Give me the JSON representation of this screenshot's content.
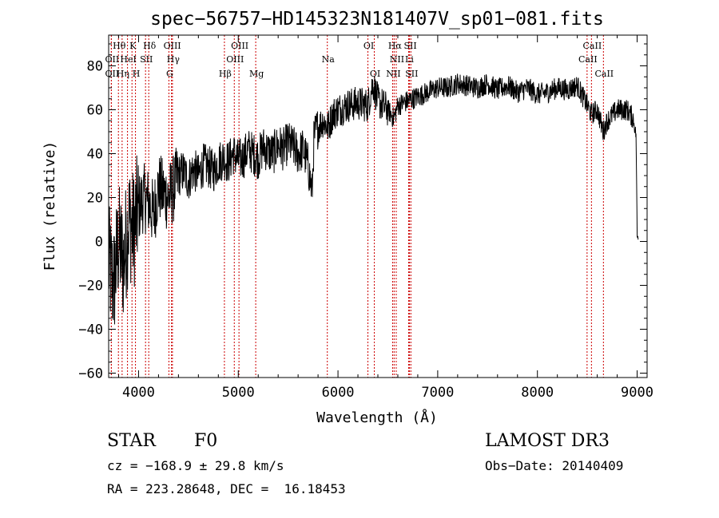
{
  "chart_data": {
    "type": "line",
    "title": "spec−56757−HD145323N181407V_sp01−081.fits",
    "xlabel": "Wavelength (Å)",
    "ylabel": "Flux (relative)",
    "xlim": [
      3700,
      9100
    ],
    "ylim": [
      -62,
      94
    ],
    "xticks": [
      4000,
      5000,
      6000,
      7000,
      8000,
      9000
    ],
    "xtick_labels": [
      "4000",
      "5000",
      "6000",
      "7000",
      "8000",
      "9000"
    ],
    "yticks": [
      -60,
      -40,
      -20,
      0,
      20,
      40,
      60,
      80
    ],
    "ytick_labels": [
      "−60",
      "−40",
      "−20",
      "0",
      "20",
      "40",
      "60",
      "80"
    ],
    "grid": false,
    "series": [
      {
        "name": "flux",
        "x": [
          3700,
          3750,
          3800,
          3850,
          3900,
          3950,
          4000,
          4050,
          4100,
          4150,
          4200,
          4250,
          4300,
          4350,
          4400,
          4450,
          4500,
          4550,
          4600,
          4650,
          4700,
          4750,
          4800,
          4850,
          4900,
          4950,
          5000,
          5050,
          5100,
          5150,
          5200,
          5250,
          5300,
          5350,
          5400,
          5450,
          5500,
          5550,
          5600,
          5650,
          5700,
          5740,
          5760,
          5800,
          5850,
          5900,
          5950,
          6000,
          6100,
          6200,
          6300,
          6350,
          6400,
          6500,
          6560,
          6600,
          6700,
          6800,
          6900,
          7000,
          7100,
          7200,
          7300,
          7400,
          7500,
          7600,
          7700,
          7800,
          7900,
          8000,
          8100,
          8200,
          8300,
          8400,
          8500,
          8540,
          8600,
          8660,
          8700,
          8800,
          8900,
          8960,
          8990,
          9000,
          9010
        ],
        "y": [
          -10,
          -20,
          0,
          -10,
          10,
          5,
          15,
          20,
          18,
          12,
          25,
          22,
          20,
          24,
          30,
          32,
          28,
          33,
          30,
          35,
          34,
          32,
          36,
          38,
          36,
          40,
          37,
          38,
          42,
          40,
          38,
          43,
          41,
          40,
          44,
          42,
          45,
          43,
          40,
          42,
          35,
          22,
          48,
          52,
          55,
          52,
          58,
          60,
          62,
          63,
          62,
          72,
          64,
          60,
          56,
          62,
          64,
          66,
          68,
          70,
          70,
          72,
          71,
          70,
          72,
          69,
          71,
          68,
          70,
          67,
          68,
          70,
          69,
          71,
          62,
          58,
          60,
          50,
          55,
          60,
          60,
          56,
          48,
          2,
          2
        ]
      }
    ],
    "lines": [
      {
        "label": "Hθ",
        "x": 3798,
        "row": 0
      },
      {
        "label": "K",
        "x": 3934,
        "row": 0
      },
      {
        "label": "Hδ",
        "x": 4102,
        "row": 0
      },
      {
        "label": "OIII",
        "x": 4330,
        "row": 0
      },
      {
        "label": "OIII",
        "x": 5007,
        "row": 0
      },
      {
        "label": "OI",
        "x": 6300,
        "row": 0
      },
      {
        "label": "Hα",
        "x": 6563,
        "row": 0
      },
      {
        "label": "SII",
        "x": 6717,
        "row": 0
      },
      {
        "label": "CaII",
        "x": 8542,
        "row": 0
      },
      {
        "label": "OII",
        "x": 3727,
        "row": 1
      },
      {
        "label": "HeI",
        "x": 3889,
        "row": 1
      },
      {
        "label": "SII",
        "x": 4070,
        "row": 1
      },
      {
        "label": "Hγ",
        "x": 4340,
        "row": 1
      },
      {
        "label": "OIII",
        "x": 4960,
        "row": 1
      },
      {
        "label": "Na",
        "x": 5893,
        "row": 1
      },
      {
        "label": "NII",
        "x": 6584,
        "row": 1
      },
      {
        "label": "Li",
        "x": 6708,
        "row": 1
      },
      {
        "label": "CaII",
        "x": 8498,
        "row": 1
      },
      {
        "label": "OII",
        "x": 3727,
        "row": 2
      },
      {
        "label": "Hη",
        "x": 3835,
        "row": 2
      },
      {
        "label": "H",
        "x": 3969,
        "row": 2
      },
      {
        "label": "G",
        "x": 4304,
        "row": 2
      },
      {
        "label": "Hβ",
        "x": 4861,
        "row": 2
      },
      {
        "label": "Mg",
        "x": 5175,
        "row": 2
      },
      {
        "label": "OI",
        "x": 6364,
        "row": 2
      },
      {
        "label": "NII",
        "x": 6548,
        "row": 2
      },
      {
        "label": "SII",
        "x": 6731,
        "row": 2
      },
      {
        "label": "CaII",
        "x": 8662,
        "row": 2
      }
    ]
  },
  "info": {
    "object_class": "STAR",
    "subclass": "F0",
    "survey": "LAMOST DR3",
    "cz": "cz = −168.9 ± 29.8 km/s",
    "obs_date": "Obs−Date: 20140409",
    "coords": "RA = 223.28648, DEC =  16.18453"
  },
  "colors": {
    "line_marker": "#cc0000",
    "spectrum": "#000000"
  }
}
